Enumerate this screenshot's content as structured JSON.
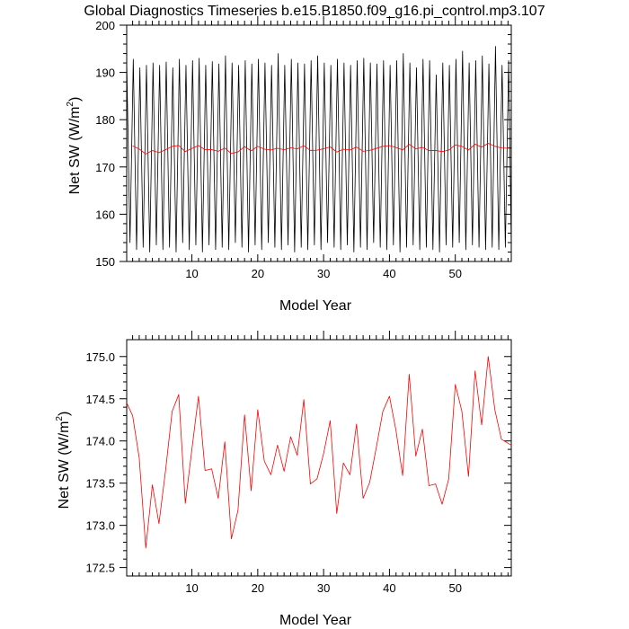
{
  "chart_data": [
    {
      "type": "line",
      "title": "Global Diagnostics Timeseries b.e15.B1850.f09_g16.pi_control.mp3.107",
      "xlabel": "Model Year",
      "ylabel_main": "Net SW (W/m",
      "ylabel_sup": "2",
      "ylabel_end": ")",
      "xlim": [
        0.1,
        58.5
      ],
      "ylim": [
        150,
        200
      ],
      "xticks": [
        10,
        20,
        30,
        40,
        50
      ],
      "yticks": [
        150,
        160,
        170,
        180,
        190,
        200
      ],
      "grid": false,
      "series": [
        {
          "color": "#000000",
          "x": [
            0.1,
            0.6,
            1.1,
            1.6,
            2.1,
            2.6,
            3.1,
            3.6,
            4.1,
            4.6,
            5.1,
            5.6,
            6.1,
            6.6,
            7.1,
            7.6,
            8.1,
            8.6,
            9.1,
            9.6,
            10.1,
            10.6,
            11.1,
            11.6,
            12.1,
            12.6,
            13.1,
            13.6,
            14.1,
            14.6,
            15.1,
            15.6,
            16.1,
            16.6,
            17.1,
            17.6,
            18.1,
            18.6,
            19.1,
            19.6,
            20.1,
            20.6,
            21.1,
            21.6,
            22.1,
            22.6,
            23.1,
            23.6,
            24.1,
            24.6,
            25.1,
            25.6,
            26.1,
            26.6,
            27.1,
            27.6,
            28.1,
            28.6,
            29.1,
            29.6,
            30.1,
            30.6,
            31.1,
            31.6,
            32.1,
            32.6,
            33.1,
            33.6,
            34.1,
            34.6,
            35.1,
            35.6,
            36.1,
            36.6,
            37.1,
            37.6,
            38.1,
            38.6,
            39.1,
            39.6,
            40.1,
            40.6,
            41.1,
            41.6,
            42.1,
            42.6,
            43.1,
            43.6,
            44.1,
            44.6,
            45.1,
            45.6,
            46.1,
            46.6,
            47.1,
            47.6,
            48.1,
            48.6,
            49.1,
            49.6,
            50.1,
            50.6,
            51.1,
            51.6,
            52.1,
            52.6,
            53.1,
            53.6,
            54.1,
            54.6,
            55.1,
            55.6,
            56.1,
            56.6,
            57.1,
            57.6,
            58.1,
            58.5
          ],
          "values": [
            192.5,
            154.0,
            192.8,
            152.5,
            191.0,
            153.0,
            191.5,
            152.0,
            192.0,
            153.5,
            191.5,
            152.5,
            192.2,
            153.0,
            191.0,
            152.0,
            192.8,
            154.0,
            191.5,
            152.5,
            192.5,
            153.5,
            193.0,
            152.0,
            191.5,
            153.5,
            192.3,
            152.5,
            191.8,
            153.0,
            193.5,
            152.5,
            192.0,
            154.0,
            191.5,
            153.0,
            192.5,
            152.0,
            191.8,
            153.5,
            192.8,
            152.5,
            192.0,
            154.0,
            191.5,
            153.0,
            194.0,
            152.5,
            191.5,
            153.5,
            192.8,
            152.0,
            192.0,
            153.0,
            191.8,
            152.5,
            192.5,
            153.5,
            193.5,
            152.5,
            192.0,
            154.0,
            191.5,
            153.0,
            192.8,
            152.5,
            192.0,
            153.5,
            191.5,
            152.0,
            192.5,
            153.0,
            193.0,
            152.5,
            192.0,
            154.0,
            191.8,
            153.0,
            192.5,
            152.5,
            191.5,
            153.5,
            192.5,
            152.0,
            194.0,
            153.0,
            192.0,
            153.5,
            191.0,
            152.5,
            192.8,
            153.0,
            192.5,
            152.5,
            189.5,
            152.0,
            192.0,
            153.5,
            191.5,
            153.0,
            192.8,
            154.0,
            194.5,
            152.5,
            192.0,
            153.5,
            192.5,
            153.0,
            193.5,
            152.5,
            191.8,
            153.0,
            195.5,
            152.5,
            191.5,
            153.0,
            192.5,
            153.0
          ]
        },
        {
          "color": "#ff0000",
          "x": [
            1,
            2,
            3,
            4,
            5,
            6,
            7,
            8,
            9,
            10,
            11,
            12,
            13,
            14,
            15,
            16,
            17,
            18,
            19,
            20,
            21,
            22,
            23,
            24,
            25,
            26,
            27,
            28,
            29,
            30,
            31,
            32,
            33,
            34,
            35,
            36,
            37,
            38,
            39,
            40,
            41,
            42,
            43,
            44,
            45,
            46,
            47,
            48,
            49,
            50,
            51,
            52,
            53,
            54,
            55,
            56,
            57,
            58
          ],
          "values": [
            174.45,
            173.8,
            172.73,
            173.48,
            173.02,
            173.65,
            174.35,
            174.55,
            173.26,
            173.9,
            174.53,
            173.65,
            173.67,
            173.32,
            173.99,
            172.84,
            173.18,
            174.31,
            173.41,
            174.37,
            173.76,
            173.6,
            173.95,
            173.64,
            174.05,
            173.83,
            174.49,
            173.49,
            173.55,
            173.85,
            174.24,
            173.14,
            173.74,
            173.6,
            174.2,
            173.32,
            173.51,
            173.92,
            174.35,
            174.53,
            174.12,
            173.59,
            174.79,
            173.82,
            174.14,
            173.47,
            173.49,
            173.25,
            173.55,
            174.67,
            174.35,
            173.58,
            174.83,
            174.19,
            175.0,
            174.37,
            174.02,
            173.95
          ]
        }
      ]
    },
    {
      "type": "line",
      "xlabel": "Model Year",
      "ylabel_main": "Net SW (W/m",
      "ylabel_sup": "2",
      "ylabel_end": ")",
      "xlim": [
        0.1,
        58.5
      ],
      "ylim": [
        172.4,
        175.2
      ],
      "xticks": [
        10,
        20,
        30,
        40,
        50
      ],
      "yticks": [
        172.5,
        173.0,
        173.5,
        174.0,
        174.5,
        175.0
      ],
      "ytick_labels": [
        "172.5",
        "173.0",
        "173.5",
        "174.0",
        "174.5",
        "175.0"
      ],
      "grid": false,
      "series": [
        {
          "color": "#ff0000",
          "x": [
            0.1,
            1,
            2,
            3,
            4,
            5,
            6,
            7,
            8,
            9,
            10,
            11,
            12,
            13,
            14,
            15,
            16,
            17,
            18,
            19,
            20,
            21,
            22,
            23,
            24,
            25,
            26,
            27,
            28,
            29,
            30,
            31,
            32,
            33,
            34,
            35,
            36,
            37,
            38,
            39,
            40,
            41,
            42,
            43,
            44,
            45,
            46,
            47,
            48,
            49,
            50,
            51,
            52,
            53,
            54,
            55,
            56,
            57,
            58.5
          ],
          "values": [
            174.45,
            174.3,
            173.8,
            172.73,
            173.48,
            173.02,
            173.65,
            174.35,
            174.55,
            173.26,
            173.9,
            174.53,
            173.65,
            173.67,
            173.32,
            173.99,
            172.84,
            173.18,
            174.31,
            173.41,
            174.37,
            173.76,
            173.6,
            173.95,
            173.64,
            174.05,
            173.83,
            174.49,
            173.49,
            173.55,
            173.85,
            174.24,
            173.14,
            173.74,
            173.6,
            174.2,
            173.32,
            173.51,
            173.92,
            174.35,
            174.53,
            174.12,
            173.59,
            174.79,
            173.82,
            174.14,
            173.47,
            173.49,
            173.25,
            173.55,
            174.67,
            174.35,
            173.58,
            174.83,
            174.19,
            175.0,
            174.37,
            174.02,
            173.95
          ]
        }
      ]
    }
  ]
}
